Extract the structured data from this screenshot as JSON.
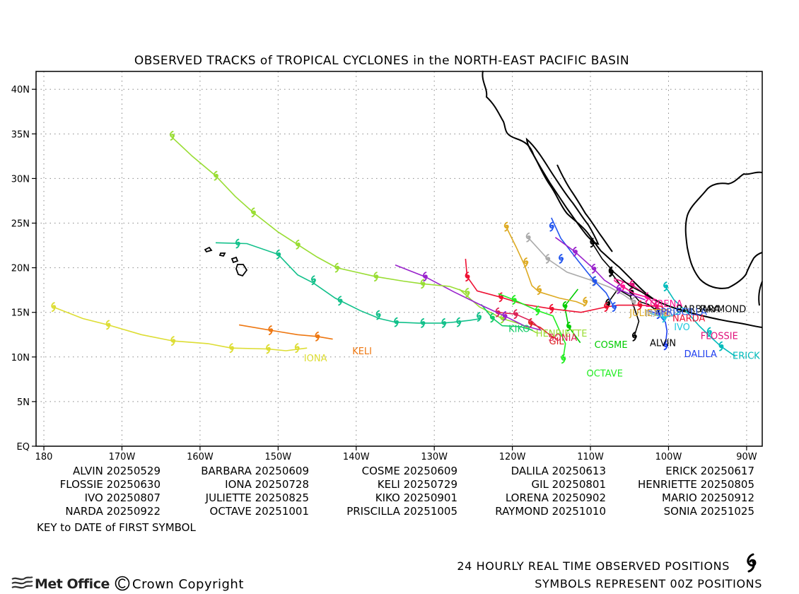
{
  "title": "OBSERVED TRACKS of TROPICAL CYCLONES in the NORTH-EAST PACIFIC BASIN",
  "map": {
    "lon_range": [
      181,
      88
    ],
    "lat_range": [
      0,
      42
    ],
    "x_ticks": [
      {
        "lon": 180,
        "label": "180"
      },
      {
        "lon": 170,
        "label": "170W"
      },
      {
        "lon": 160,
        "label": "160W"
      },
      {
        "lon": 150,
        "label": "150W"
      },
      {
        "lon": 140,
        "label": "140W"
      },
      {
        "lon": 130,
        "label": "130W"
      },
      {
        "lon": 120,
        "label": "120W"
      },
      {
        "lon": 110,
        "label": "110W"
      },
      {
        "lon": 100,
        "label": "100W"
      },
      {
        "lon": 90,
        "label": "90W"
      }
    ],
    "y_ticks": [
      {
        "lat": 0,
        "label": "EQ"
      },
      {
        "lat": 5,
        "label": "5N"
      },
      {
        "lat": 10,
        "label": "10N"
      },
      {
        "lat": 15,
        "label": "15N"
      },
      {
        "lat": 20,
        "label": "20N"
      },
      {
        "lat": 25,
        "label": "25N"
      },
      {
        "lat": 30,
        "label": "30N"
      },
      {
        "lat": 35,
        "label": "35N"
      },
      {
        "lat": 40,
        "label": "40N"
      }
    ],
    "grid": "dotted",
    "coastline_color": "#000000"
  },
  "storms": [
    {
      "name": "ALVIN",
      "color": "#000000",
      "label_lon": 102.4,
      "label_lat": 11.2,
      "track": [
        [
          107.8,
          16.0
        ],
        [
          106.5,
          17.6
        ],
        [
          104.9,
          16.8
        ],
        [
          103.8,
          14.0
        ],
        [
          104.4,
          12.3
        ]
      ],
      "symbols": [
        [
          107.8,
          16.0
        ],
        [
          104.4,
          12.3
        ]
      ]
    },
    {
      "name": "BARBARA",
      "color": "#000000",
      "label_lon": 99.0,
      "label_lat": 15.0,
      "track": [
        [
          101.5,
          15.2
        ],
        [
          102.6,
          15.9
        ],
        [
          103.7,
          16.2
        ],
        [
          104.8,
          17.3
        ],
        [
          106.2,
          18.1
        ],
        [
          107.4,
          19.5
        ]
      ],
      "symbols": [
        [
          101.5,
          15.2
        ],
        [
          104.8,
          17.3
        ],
        [
          107.4,
          19.5
        ]
      ]
    },
    {
      "name": "COSME",
      "color": "#00cc00",
      "label_lon": 109.5,
      "label_lat": 11.0,
      "track": [
        [
          111.6,
          17.6
        ],
        [
          113.3,
          15.7
        ],
        [
          112.8,
          13.4
        ],
        [
          111.3,
          11.6
        ]
      ],
      "symbols": [
        [
          113.3,
          15.7
        ],
        [
          112.8,
          13.4
        ]
      ]
    },
    {
      "name": "DALILA",
      "color": "#1f3ff0",
      "label_lon": 98.0,
      "label_lat": 10.0,
      "track": [
        [
          102.6,
          15.2
        ],
        [
          101.3,
          14.8
        ],
        [
          100.4,
          13.9
        ],
        [
          100.2,
          12.9
        ],
        [
          100.4,
          11.3
        ]
      ],
      "symbols": [
        [
          101.3,
          14.8
        ],
        [
          100.4,
          11.3
        ]
      ]
    },
    {
      "name": "ERICK",
      "color": "#00bbbb",
      "label_lon": 91.8,
      "label_lat": 9.8,
      "track": [
        [
          100.4,
          17.9
        ],
        [
          99.3,
          16.4
        ],
        [
          97.6,
          15.0
        ],
        [
          96.1,
          13.5
        ],
        [
          94.8,
          12.4
        ],
        [
          93.3,
          11.2
        ],
        [
          91.5,
          10.1
        ]
      ],
      "symbols": [
        [
          100.4,
          17.9
        ],
        [
          94.8,
          12.8
        ],
        [
          93.3,
          11.2
        ]
      ]
    },
    {
      "name": "FLOSSIE",
      "color": "#e0107a",
      "label_lon": 95.9,
      "label_lat": 12.0,
      "track": [
        [
          99.8,
          14.5
        ],
        [
          101.6,
          15.7
        ],
        [
          103.1,
          17.1
        ],
        [
          104.7,
          18.1
        ],
        [
          107.0,
          18.8
        ]
      ],
      "symbols": [
        [
          101.6,
          15.7
        ],
        [
          104.7,
          18.1
        ]
      ]
    },
    {
      "name": "GIL",
      "color": "#dd2222",
      "label_lon": 115.3,
      "label_lat": 11.4,
      "track": [
        [
          117.7,
          13.8
        ],
        [
          116.4,
          13.3
        ],
        [
          115.1,
          12.4
        ],
        [
          114.3,
          12.0
        ]
      ],
      "symbols": [
        [
          117.7,
          13.8
        ]
      ]
    },
    {
      "name": "HENRIETTE",
      "color": "#99dd33",
      "label_lon": 117.0,
      "label_lat": 12.3,
      "track": [
        [
          126.8,
          17.6
        ],
        [
          124.2,
          15.6
        ],
        [
          121.3,
          14.3
        ],
        [
          119.0,
          13.7
        ],
        [
          116.9,
          12.7
        ]
      ],
      "symbols": [
        [
          121.3,
          14.3
        ]
      ]
    },
    {
      "name": "IONA",
      "color": "#dddd33",
      "label_lon": 146.7,
      "label_lat": 9.5,
      "track": [
        [
          178.8,
          15.6
        ],
        [
          175.0,
          14.3
        ],
        [
          171.8,
          13.6
        ],
        [
          167.5,
          12.5
        ],
        [
          163.5,
          11.8
        ],
        [
          159.0,
          11.5
        ],
        [
          156.0,
          11.0
        ],
        [
          151.3,
          10.9
        ],
        [
          149.0,
          10.7
        ],
        [
          146.3,
          11.0
        ]
      ],
      "symbols": [
        [
          178.8,
          15.6
        ],
        [
          171.8,
          13.6
        ],
        [
          163.5,
          11.8
        ],
        [
          156.0,
          11.0
        ],
        [
          151.3,
          10.9
        ],
        [
          147.6,
          11.0
        ]
      ]
    },
    {
      "name": "IVO",
      "color": "#22c8dd",
      "label_lon": 99.3,
      "label_lat": 13.0,
      "track": [
        [
          98.2,
          15.3
        ],
        [
          99.0,
          14.8
        ],
        [
          100.6,
          14.4
        ],
        [
          102.3,
          14.9
        ]
      ],
      "symbols": [
        [
          100.6,
          14.4
        ]
      ]
    },
    {
      "name": "JULIETTE",
      "color": "#ddaa22",
      "label_lon": 105.0,
      "label_lat": 14.6,
      "track": [
        [
          120.8,
          24.6
        ],
        [
          119.5,
          22.3
        ],
        [
          118.4,
          20.2
        ],
        [
          117.5,
          18.0
        ],
        [
          116.6,
          17.3
        ],
        [
          114.0,
          16.6
        ],
        [
          111.8,
          16.2
        ],
        [
          110.7,
          15.8
        ]
      ],
      "symbols": [
        [
          120.8,
          24.6
        ],
        [
          118.3,
          20.6
        ],
        [
          116.6,
          17.5
        ],
        [
          110.7,
          16.2
        ]
      ]
    },
    {
      "name": "KELI",
      "color": "#ee7711",
      "label_lon": 140.5,
      "label_lat": 10.3,
      "track": [
        [
          155.0,
          13.6
        ],
        [
          151.0,
          13.0
        ],
        [
          147.5,
          12.5
        ],
        [
          145.0,
          12.3
        ],
        [
          143.0,
          12.0
        ]
      ],
      "symbols": [
        [
          151.0,
          13.0
        ],
        [
          145.0,
          12.3
        ]
      ]
    },
    {
      "name": "KIKO",
      "color": "#11cc66",
      "label_lon": 120.5,
      "label_lat": 12.8,
      "track": [
        [
          124.0,
          15.9
        ],
        [
          122.6,
          14.4
        ],
        [
          121.3,
          13.5
        ],
        [
          119.0,
          13.4
        ],
        [
          117.4,
          13.0
        ]
      ],
      "symbols": [
        [
          122.6,
          14.4
        ]
      ]
    },
    {
      "name": "LORENA",
      "color": "#ff1493",
      "label_lon": 103.0,
      "label_lat": 15.6,
      "track": [
        [
          101.5,
          16.4
        ],
        [
          102.8,
          16.7
        ],
        [
          104.4,
          17.1
        ],
        [
          105.9,
          17.9
        ],
        [
          107.0,
          18.6
        ]
      ],
      "symbols": [
        [
          102.8,
          16.7
        ],
        [
          105.9,
          17.9
        ]
      ]
    },
    {
      "name": "MARIO",
      "color": "#aaaaaa",
      "label_lon": 103.0,
      "label_lat": 14.5,
      "track": [
        [
          104.5,
          16.2
        ],
        [
          105.8,
          17.0
        ],
        [
          107.5,
          17.8
        ],
        [
          109.6,
          18.5
        ],
        [
          113.0,
          19.5
        ],
        [
          115.5,
          21.0
        ],
        [
          118.0,
          23.4
        ]
      ],
      "symbols": [
        [
          104.5,
          16.2
        ],
        [
          109.6,
          18.5
        ],
        [
          115.5,
          21.0
        ],
        [
          118.0,
          23.4
        ]
      ]
    },
    {
      "name": "NARDA",
      "color": "#ee1133",
      "label_lon": 99.5,
      "label_lat": 14.0,
      "track": [
        [
          99.9,
          15.0
        ],
        [
          101.0,
          15.7
        ],
        [
          103.7,
          15.8
        ],
        [
          106.5,
          15.8
        ],
        [
          108.0,
          15.6
        ],
        [
          111.2,
          15.0
        ],
        [
          115.0,
          15.4
        ],
        [
          118.5,
          15.9
        ],
        [
          121.5,
          16.7
        ],
        [
          124.5,
          17.4
        ],
        [
          125.8,
          19.0
        ],
        [
          126.0,
          21.0
        ]
      ],
      "symbols": [
        [
          103.7,
          15.8
        ],
        [
          108.0,
          15.6
        ],
        [
          115.0,
          15.4
        ],
        [
          121.5,
          16.7
        ],
        [
          125.8,
          19.0
        ]
      ]
    },
    {
      "name": "OCTAVE",
      "color": "#22ee22",
      "label_lon": 110.5,
      "label_lat": 7.8,
      "track": [
        [
          121.8,
          17.1
        ],
        [
          119.8,
          16.4
        ],
        [
          116.8,
          15.2
        ],
        [
          114.8,
          14.6
        ],
        [
          113.2,
          11.5
        ],
        [
          113.5,
          9.8
        ]
      ],
      "symbols": [
        [
          119.8,
          16.4
        ],
        [
          116.8,
          15.2
        ],
        [
          113.5,
          9.8
        ]
      ]
    },
    {
      "name": "PRISCILLA",
      "color": "#2255ee",
      "label_lon": 101.0,
      "label_lat": 14.7,
      "track": [
        [
          107.0,
          15.6
        ],
        [
          108.0,
          17.2
        ],
        [
          109.5,
          18.5
        ],
        [
          111.6,
          20.8
        ],
        [
          113.8,
          23.3
        ],
        [
          115.0,
          25.6
        ]
      ],
      "symbols": [
        [
          107.0,
          15.6
        ],
        [
          109.5,
          18.5
        ],
        [
          113.8,
          21.0
        ],
        [
          115.0,
          24.6
        ]
      ]
    },
    {
      "name": "RAYMOND",
      "color": "#000000",
      "label_lon": 96.0,
      "label_lat": 15.0,
      "track": [
        [
          102.0,
          16.5
        ],
        [
          103.5,
          17.3
        ],
        [
          105.0,
          18.0
        ],
        [
          107.0,
          19.5
        ],
        [
          108.5,
          21.0
        ],
        [
          109.8,
          22.8
        ]
      ],
      "symbols": [
        [
          107.4,
          19.6
        ],
        [
          109.8,
          22.8
        ]
      ]
    },
    {
      "name": "SONIA",
      "color": "#dd2255",
      "label_lon": 115.4,
      "label_lat": 11.8,
      "track": [
        [
          121.9,
          15.0
        ],
        [
          119.6,
          14.8
        ],
        [
          117.5,
          14.0
        ],
        [
          116.4,
          13.1
        ]
      ],
      "symbols": [
        [
          121.9,
          15.0
        ],
        [
          119.6,
          14.8
        ]
      ]
    },
    {
      "name": "UNLABELED-PURPLE",
      "color": "#9922cc",
      "label_lon": null,
      "label_lat": null,
      "track": [
        [
          135.0,
          20.3
        ],
        [
          131.2,
          19.0
        ],
        [
          127.5,
          17.3
        ],
        [
          124.0,
          15.8
        ],
        [
          121.0,
          14.6
        ],
        [
          118.5,
          13.5
        ],
        [
          116.3,
          13.0
        ]
      ],
      "symbols": [
        [
          131.2,
          19.0
        ],
        [
          121.0,
          14.6
        ]
      ]
    },
    {
      "name": "UNLABELED-PURPLE-2",
      "color": "#9922cc",
      "label_lon": null,
      "label_lat": null,
      "track": [
        [
          103.0,
          16.4
        ],
        [
          104.8,
          17.0
        ],
        [
          106.4,
          17.6
        ],
        [
          108.2,
          18.6
        ],
        [
          109.6,
          19.9
        ],
        [
          112.0,
          21.8
        ],
        [
          114.5,
          23.4
        ]
      ],
      "symbols": [
        [
          106.4,
          17.6
        ],
        [
          109.6,
          19.9
        ],
        [
          112.0,
          21.8
        ]
      ]
    },
    {
      "name": "UNLABELED-TEAL",
      "color": "#11c08a",
      "label_lon": null,
      "label_lat": null,
      "track": [
        [
          158.0,
          22.8
        ],
        [
          154.0,
          22.7
        ],
        [
          150.0,
          21.5
        ],
        [
          147.5,
          19.2
        ],
        [
          145.5,
          18.3
        ],
        [
          142.7,
          16.6
        ],
        [
          139.5,
          15.2
        ],
        [
          137.0,
          14.3
        ],
        [
          135.0,
          13.9
        ],
        [
          132.0,
          13.8
        ],
        [
          129.0,
          13.8
        ],
        [
          127.5,
          13.9
        ],
        [
          125.5,
          14.1
        ],
        [
          124.0,
          14.3
        ]
      ],
      "symbols": [
        [
          155.2,
          22.7
        ],
        [
          150.0,
          21.5
        ],
        [
          145.5,
          18.6
        ],
        [
          142.1,
          16.3
        ],
        [
          137.2,
          14.7
        ],
        [
          134.9,
          13.9
        ],
        [
          131.5,
          13.8
        ],
        [
          128.8,
          13.8
        ],
        [
          126.9,
          13.9
        ],
        [
          124.3,
          14.5
        ]
      ]
    },
    {
      "name": "UNLABELED-LIME",
      "color": "#99dd33",
      "label_lon": null,
      "label_lat": null,
      "track": [
        [
          163.8,
          34.8
        ],
        [
          161.0,
          32.5
        ],
        [
          158.0,
          30.3
        ],
        [
          155.5,
          28.0
        ],
        [
          153.2,
          26.2
        ],
        [
          150.0,
          24.0
        ],
        [
          147.5,
          22.6
        ],
        [
          145.0,
          21.2
        ],
        [
          142.5,
          20.0
        ],
        [
          140.0,
          19.5
        ],
        [
          137.5,
          19.0
        ],
        [
          134.0,
          18.5
        ],
        [
          131.5,
          18.2
        ],
        [
          128.0,
          17.9
        ],
        [
          126.0,
          17.3
        ]
      ],
      "symbols": [
        [
          163.6,
          34.8
        ],
        [
          158.0,
          30.3
        ],
        [
          153.2,
          26.2
        ],
        [
          147.5,
          22.6
        ],
        [
          142.5,
          20.0
        ],
        [
          137.5,
          19.0
        ],
        [
          131.5,
          18.2
        ],
        [
          125.8,
          17.2
        ]
      ]
    }
  ],
  "key": {
    "rows": [
      [
        {
          "name": "ALVIN",
          "date": "20250529"
        },
        {
          "name": "BARBARA",
          "date": "20250609"
        },
        {
          "name": "COSME",
          "date": "20250609"
        },
        {
          "name": "DALILA",
          "date": "20250613"
        },
        {
          "name": "ERICK",
          "date": "20250617"
        }
      ],
      [
        {
          "name": "FLOSSIE",
          "date": "20250630"
        },
        {
          "name": "IONA",
          "date": "20250728"
        },
        {
          "name": "KELI",
          "date": "20250729"
        },
        {
          "name": "GIL",
          "date": "20250801"
        },
        {
          "name": "HENRIETTE",
          "date": "20250805"
        }
      ],
      [
        {
          "name": "IVO",
          "date": "20250807"
        },
        {
          "name": "JULIETTE",
          "date": "20250825"
        },
        {
          "name": "KIKO",
          "date": "20250901"
        },
        {
          "name": "LORENA",
          "date": "20250902"
        },
        {
          "name": "MARIO",
          "date": "20250912"
        }
      ],
      [
        {
          "name": "NARDA",
          "date": "20250922"
        },
        {
          "name": "OCTAVE",
          "date": "20251001"
        },
        {
          "name": "PRISCILLA",
          "date": "20251005"
        },
        {
          "name": "RAYMOND",
          "date": "20251010"
        },
        {
          "name": "SONIA",
          "date": "20251025"
        }
      ]
    ],
    "caption": "KEY to DATE of FIRST SYMBOL"
  },
  "footer": {
    "line1": "24 HOURLY REAL TIME OBSERVED POSITIONS",
    "line2": "SYMBOLS REPRESENT 00Z POSITIONS",
    "brand": "Met Office",
    "copyright": "Crown Copyright",
    "symbol_icon": "cyclone-symbol-icon",
    "brand_icon": "met-office-waves-icon"
  }
}
